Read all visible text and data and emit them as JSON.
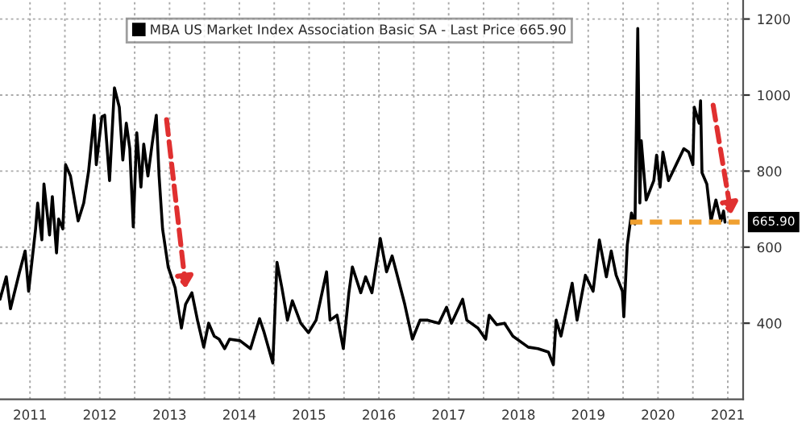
{
  "chart_data": {
    "type": "line",
    "x": [
      2011.07,
      2011.16,
      2011.22,
      2011.35,
      2011.43,
      2011.48,
      2011.58,
      2011.61,
      2011.67,
      2011.7,
      2011.78,
      2011.82,
      2011.88,
      2011.91,
      2011.97,
      2012.01,
      2012.08,
      2012.19,
      2012.27,
      2012.34,
      2012.42,
      2012.45,
      2012.53,
      2012.57,
      2012.64,
      2012.71,
      2012.78,
      2012.83,
      2012.88,
      2012.93,
      2012.98,
      2013.03,
      2013.09,
      2013.13,
      2013.19,
      2013.25,
      2013.31,
      2013.35,
      2013.4,
      2013.48,
      2013.58,
      2013.67,
      2013.73,
      2013.82,
      2013.9,
      2013.99,
      2014.06,
      2014.14,
      2014.21,
      2014.29,
      2014.36,
      2014.51,
      2014.66,
      2014.79,
      2014.85,
      2014.98,
      2015.04,
      2015.11,
      2015.19,
      2015.26,
      2015.38,
      2015.49,
      2015.6,
      2015.65,
      2015.75,
      2015.8,
      2015.9,
      2015.99,
      2016.07,
      2016.12,
      2016.24,
      2016.31,
      2016.4,
      2016.52,
      2016.61,
      2016.69,
      2016.75,
      2016.87,
      2016.98,
      2017.09,
      2017.2,
      2017.36,
      2017.47,
      2017.54,
      2017.7,
      2017.76,
      2017.92,
      2018.03,
      2018.08,
      2018.19,
      2018.3,
      2018.42,
      2018.64,
      2018.78,
      2018.93,
      2019.0,
      2019.04,
      2019.11,
      2019.27,
      2019.34,
      2019.46,
      2019.57,
      2019.66,
      2019.76,
      2019.83,
      2019.9,
      2019.99,
      2020.01,
      2020.06,
      2020.12,
      2020.17,
      2020.21,
      2020.24,
      2020.26,
      2020.33,
      2020.44,
      2020.48,
      2020.53,
      2020.57,
      2020.65,
      2020.76,
      2020.87,
      2020.94,
      2021.0,
      2021.02,
      2021.09,
      2021.11,
      2021.13,
      2021.2,
      2021.26,
      2021.33,
      2021.4,
      2021.44,
      2021.46
    ],
    "series": [
      {
        "name": "MBA US Market Index Association Basic SA - Last Price 665.90",
        "color": "#000000",
        "values": [
          463,
          522,
          438,
          535,
          590,
          484,
          648,
          716,
          619,
          766,
          632,
          733,
          585,
          674,
          648,
          817,
          787,
          669,
          716,
          800,
          947,
          817,
          943,
          947,
          775,
          1019,
          968,
          829,
          926,
          859,
          653,
          901,
          758,
          871,
          787,
          871,
          947,
          787,
          648,
          548,
          493,
          387,
          450,
          480,
          408,
          337,
          400,
          366,
          358,
          333,
          358,
          354,
          333,
          412,
          379,
          295,
          560,
          493,
          408,
          459,
          400,
          375,
          408,
          450,
          535,
          408,
          421,
          333,
          480,
          548,
          480,
          522,
          480,
          623,
          535,
          577,
          535,
          450,
          358,
          408,
          408,
          400,
          442,
          400,
          463,
          408,
          387,
          358,
          421,
          396,
          400,
          366,
          337,
          333,
          324,
          291,
          408,
          366,
          505,
          408,
          526,
          484,
          619,
          522,
          590,
          526,
          484,
          417,
          606,
          690,
          661,
          1175,
          716,
          880,
          724,
          775,
          842,
          758,
          850,
          775,
          817,
          859,
          850,
          817,
          968,
          926,
          985,
          796,
          766,
          669,
          724,
          669,
          695,
          665.9
        ]
      },
      {
        "type": "line",
        "color": "#f0a030",
        "line_style": "dashed",
        "x": [
          2020.1,
          2021.67
        ],
        "values": [
          665.9,
          665.9
        ]
      }
    ],
    "annotations": [
      "665.90"
    ],
    "xlim": [
      2011.07,
      2021.72
    ],
    "xticks": [
      {
        "value": 2011.5,
        "label": "2011"
      },
      {
        "value": 2012,
        "label": null
      },
      {
        "value": 2012.5,
        "label": "2012"
      },
      {
        "value": 2013,
        "label": null
      },
      {
        "value": 2013.5,
        "label": "2013"
      },
      {
        "value": 2014,
        "label": null
      },
      {
        "value": 2014.5,
        "label": "2014"
      },
      {
        "value": 2015,
        "label": null
      },
      {
        "value": 2015.5,
        "label": "2015"
      },
      {
        "value": 2016,
        "label": null
      },
      {
        "value": 2016.5,
        "label": "2016"
      },
      {
        "value": 2017,
        "label": null
      },
      {
        "value": 2017.5,
        "label": "2017"
      },
      {
        "value": 2018,
        "label": null
      },
      {
        "value": 2018.5,
        "label": "2018"
      },
      {
        "value": 2019,
        "label": null
      },
      {
        "value": 2019.5,
        "label": "2019"
      },
      {
        "value": 2020,
        "label": null
      },
      {
        "value": 2020.5,
        "label": "2020"
      },
      {
        "value": 2021,
        "label": null
      },
      {
        "value": 2021.5,
        "label": "2021"
      }
    ],
    "ylim": [
      200,
      1250
    ],
    "yticks": [
      400,
      600,
      800,
      1000,
      1200
    ],
    "grid": true,
    "legend": "top"
  }
}
